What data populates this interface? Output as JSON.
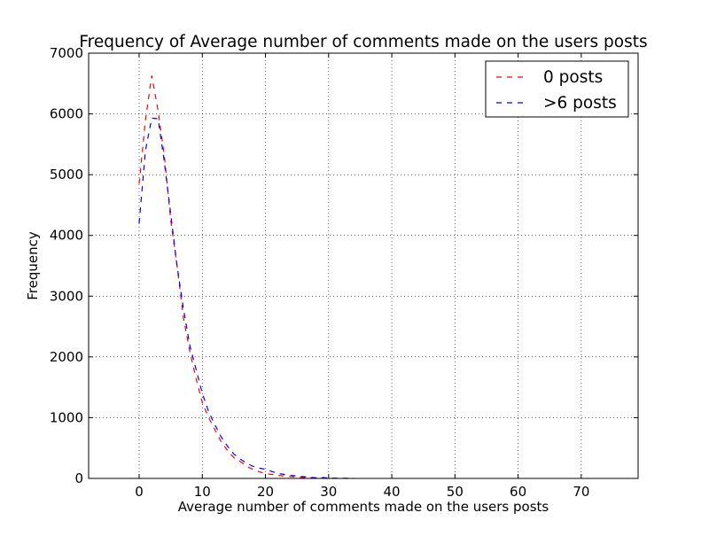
{
  "chart_data": {
    "type": "line",
    "title": "Frequency of Average number of comments made on the users posts",
    "xlabel": "Average number of comments made on the users posts",
    "ylabel": "Frequency",
    "xlim": [
      -8,
      79
    ],
    "ylim": [
      0,
      7000
    ],
    "xticks": [
      0,
      10,
      20,
      30,
      40,
      50,
      60,
      70
    ],
    "yticks": [
      0,
      1000,
      2000,
      3000,
      4000,
      5000,
      6000,
      7000
    ],
    "grid": true,
    "legend_position": "top-right",
    "series": [
      {
        "name": "0 posts",
        "color": "#ff0000",
        "style": "dashed",
        "x": [
          0,
          1,
          2,
          3,
          4,
          5,
          6,
          7,
          8,
          9,
          10,
          11,
          12,
          13,
          14,
          15,
          16,
          17,
          18,
          19,
          20,
          22,
          24,
          26,
          28,
          30,
          32,
          34
        ],
        "y": [
          4850,
          5900,
          6630,
          6050,
          5300,
          4250,
          3500,
          2650,
          2100,
          1650,
          1250,
          1000,
          800,
          600,
          460,
          340,
          280,
          200,
          150,
          110,
          80,
          50,
          30,
          15,
          8,
          3,
          1,
          0
        ]
      },
      {
        "name": ">6 posts",
        "color": "#0000ff",
        "style": "dashed",
        "x": [
          0,
          1,
          2,
          3,
          4,
          5,
          6,
          7,
          8,
          9,
          10,
          11,
          12,
          13,
          14,
          15,
          16,
          17,
          18,
          19,
          20,
          22,
          24,
          26,
          28,
          29,
          30,
          32,
          34
        ],
        "y": [
          4200,
          5400,
          5930,
          5920,
          5200,
          4350,
          3500,
          2800,
          2200,
          1800,
          1400,
          1100,
          880,
          680,
          530,
          400,
          320,
          250,
          200,
          170,
          150,
          80,
          50,
          30,
          10,
          15,
          5,
          2,
          0
        ]
      }
    ]
  }
}
